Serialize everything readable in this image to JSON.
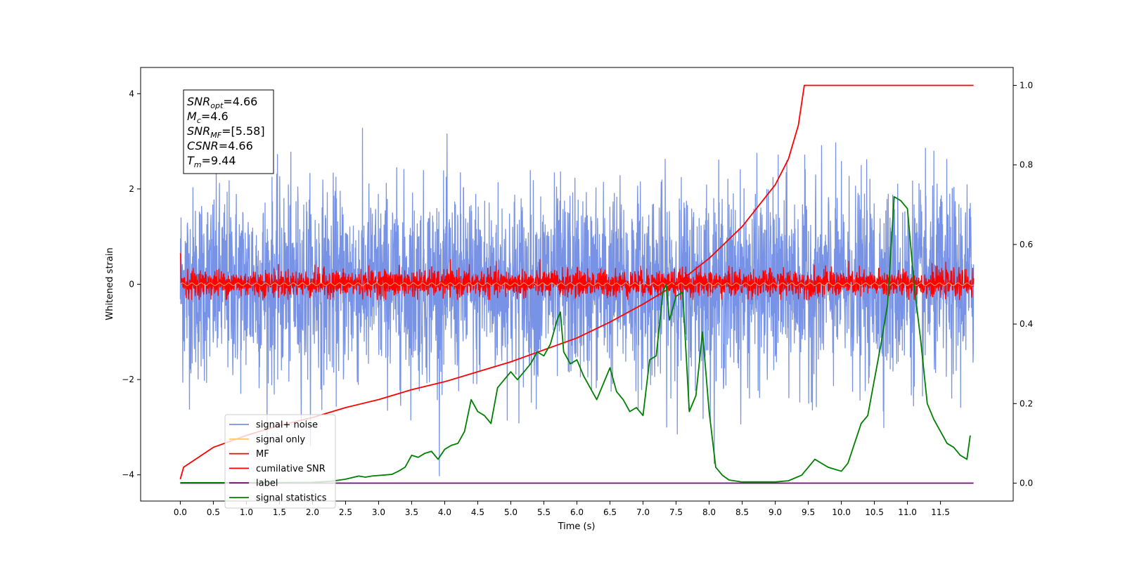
{
  "chart_data": {
    "type": "line",
    "xlabel": "Time (s)",
    "ylabel": "Whitened strain",
    "xlim": [
      -0.6,
      12.6
    ],
    "ylim_left": [
      -4.55,
      4.55
    ],
    "ylim_right": [
      -0.045,
      1.045
    ],
    "x_ticks": [
      0.0,
      0.5,
      1.0,
      1.5,
      2.0,
      2.5,
      3.0,
      3.5,
      4.0,
      4.5,
      5.0,
      5.5,
      6.0,
      6.5,
      7.0,
      7.5,
      8.0,
      8.5,
      9.0,
      9.5,
      10.0,
      10.5,
      11.0,
      11.5
    ],
    "x_tick_labels": [
      "0.0",
      "0.5",
      "1.0",
      "1.5",
      "2.0",
      "2.5",
      "3.0",
      "3.5",
      "4.0",
      "4.5",
      "5.0",
      "5.5",
      "6.0",
      "6.5",
      "7.0",
      "7.5",
      "8.0",
      "8.5",
      "9.0",
      "9.5",
      "10.0",
      "10.5",
      "11.0",
      "11.5"
    ],
    "y_left_ticks": [
      -4,
      -2,
      0,
      2,
      4
    ],
    "y_left_tick_labels": [
      "−4",
      "−2",
      "0",
      "2",
      "4"
    ],
    "y_right_ticks": [
      0.0,
      0.2,
      0.4,
      0.6,
      0.8,
      1.0
    ],
    "y_right_tick_labels": [
      "0.0",
      "0.2",
      "0.4",
      "0.6",
      "0.8",
      "1.0"
    ],
    "info_box": {
      "lines": [
        {
          "main": "SNR",
          "sub": "opt",
          "value": "=4.66"
        },
        {
          "main": "M",
          "sub": "c",
          "value": "=4.6"
        },
        {
          "main": "SNR",
          "sub": "MF",
          "value": "=[5.58]"
        },
        {
          "main": "CSNR",
          "sub": "",
          "value": "=4.66"
        },
        {
          "main": "T",
          "sub": "m",
          "value": "=9.44"
        }
      ]
    },
    "legend_position": "lower left",
    "series": [
      {
        "name": "signal+ noise",
        "axis": "left",
        "color": "#7893e6",
        "description_of_envelope": "dense noise, approx amplitude ±2 with spikes to ±4",
        "x_range": [
          0.0,
          12.0
        ],
        "envelope": [
          2.0,
          4.1
        ]
      },
      {
        "name": "signal only",
        "axis": "left",
        "color": "#ffc76a",
        "x_range": [
          0.0,
          12.0
        ],
        "values_approx": 0.0
      },
      {
        "name": "MF",
        "axis": "left",
        "color": "#ff0000",
        "x_range": [
          0.0,
          12.0
        ],
        "envelope": [
          0.3,
          0.9
        ]
      },
      {
        "name": "cumilative SNR",
        "axis": "right",
        "color": "#ff0000",
        "x": [
          0.0,
          0.05,
          0.5,
          1.0,
          1.5,
          2.0,
          2.5,
          3.0,
          3.5,
          4.0,
          4.5,
          5.0,
          5.5,
          6.0,
          6.5,
          7.0,
          7.5,
          8.0,
          8.5,
          9.0,
          9.2,
          9.35,
          9.44,
          12.0
        ],
        "y": [
          0.01,
          0.04,
          0.09,
          0.12,
          0.145,
          0.165,
          0.19,
          0.21,
          0.235,
          0.255,
          0.28,
          0.305,
          0.335,
          0.365,
          0.405,
          0.45,
          0.5,
          0.565,
          0.645,
          0.75,
          0.815,
          0.9,
          1.0,
          1.0
        ]
      },
      {
        "name": "label",
        "axis": "right",
        "color": "#800080",
        "x": [
          0.0,
          12.0
        ],
        "y": [
          0.0,
          0.0
        ]
      },
      {
        "name": "signal statistics",
        "axis": "right",
        "color": "#008000",
        "x": [
          0.0,
          1.0,
          2.0,
          2.3,
          2.5,
          2.7,
          2.8,
          2.9,
          3.2,
          3.3,
          3.4,
          3.5,
          3.6,
          3.7,
          3.8,
          3.9,
          4.0,
          4.1,
          4.2,
          4.3,
          4.4,
          4.5,
          4.6,
          4.7,
          4.8,
          4.9,
          5.0,
          5.1,
          5.2,
          5.3,
          5.4,
          5.5,
          5.6,
          5.7,
          5.75,
          5.8,
          5.9,
          6.0,
          6.1,
          6.2,
          6.3,
          6.4,
          6.5,
          6.6,
          6.7,
          6.8,
          6.9,
          7.0,
          7.1,
          7.2,
          7.3,
          7.35,
          7.4,
          7.5,
          7.6,
          7.7,
          7.8,
          7.9,
          8.0,
          8.1,
          8.2,
          8.3,
          8.5,
          9.0,
          9.2,
          9.4,
          9.5,
          9.6,
          9.7,
          9.8,
          9.9,
          10.0,
          10.1,
          10.2,
          10.3,
          10.4,
          10.5,
          10.6,
          10.7,
          10.8,
          10.9,
          11.0,
          11.1,
          11.2,
          11.3,
          11.4,
          11.5,
          11.6,
          11.7,
          11.8,
          11.9,
          11.95
        ],
        "y": [
          0.001,
          0.001,
          0.002,
          0.005,
          0.01,
          0.018,
          0.015,
          0.018,
          0.022,
          0.03,
          0.04,
          0.07,
          0.065,
          0.075,
          0.08,
          0.06,
          0.085,
          0.095,
          0.1,
          0.13,
          0.21,
          0.18,
          0.17,
          0.15,
          0.24,
          0.26,
          0.28,
          0.26,
          0.28,
          0.3,
          0.33,
          0.32,
          0.35,
          0.41,
          0.43,
          0.33,
          0.3,
          0.31,
          0.27,
          0.24,
          0.21,
          0.25,
          0.29,
          0.23,
          0.21,
          0.18,
          0.19,
          0.17,
          0.31,
          0.32,
          0.48,
          0.5,
          0.41,
          0.47,
          0.48,
          0.18,
          0.22,
          0.38,
          0.18,
          0.04,
          0.02,
          0.008,
          0.003,
          0.003,
          0.006,
          0.02,
          0.04,
          0.06,
          0.05,
          0.04,
          0.035,
          0.03,
          0.05,
          0.1,
          0.15,
          0.17,
          0.26,
          0.35,
          0.45,
          0.72,
          0.71,
          0.69,
          0.5,
          0.36,
          0.2,
          0.16,
          0.13,
          0.1,
          0.09,
          0.07,
          0.06,
          0.12
        ]
      }
    ]
  }
}
